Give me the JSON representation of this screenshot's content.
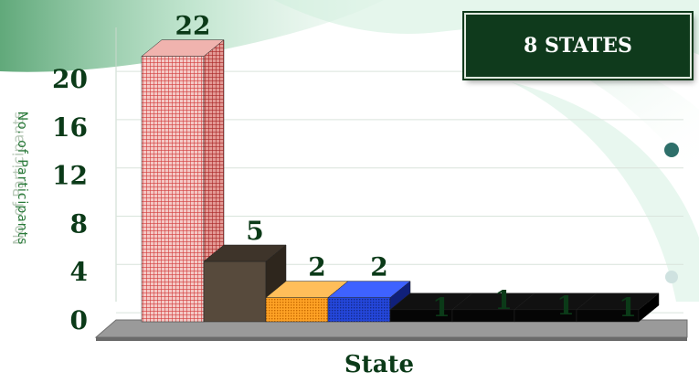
{
  "badge": {
    "text": "8 STATES"
  },
  "colors": {
    "title_green": "#0b3a18",
    "badge_bg": "#0f3a1c",
    "floor": "#8a8a8a"
  },
  "chart_data": {
    "type": "bar",
    "title": "",
    "xlabel": "State",
    "ylabel": "No. of Participants",
    "ylim": [
      0,
      24
    ],
    "yticks": [
      0,
      4,
      8,
      12,
      16,
      20
    ],
    "grid": true,
    "legend": "none",
    "categories": [
      "",
      "",
      "",
      "",
      "",
      "",
      "",
      ""
    ],
    "values": [
      22,
      5,
      2,
      2,
      1,
      1,
      1,
      1
    ],
    "bar_colors": [
      "#e05050",
      "#574a3c",
      "#ff9a1a",
      "#1f3ec8",
      "#050505",
      "#050505",
      "#050505",
      "#050505"
    ],
    "bar_patterns": [
      "grid",
      "solid",
      "dots",
      "dots",
      "solid",
      "solid",
      "solid",
      "solid"
    ],
    "data_labels": [
      "22",
      "5",
      "2",
      "2",
      "1",
      "1",
      "1",
      "1"
    ]
  }
}
